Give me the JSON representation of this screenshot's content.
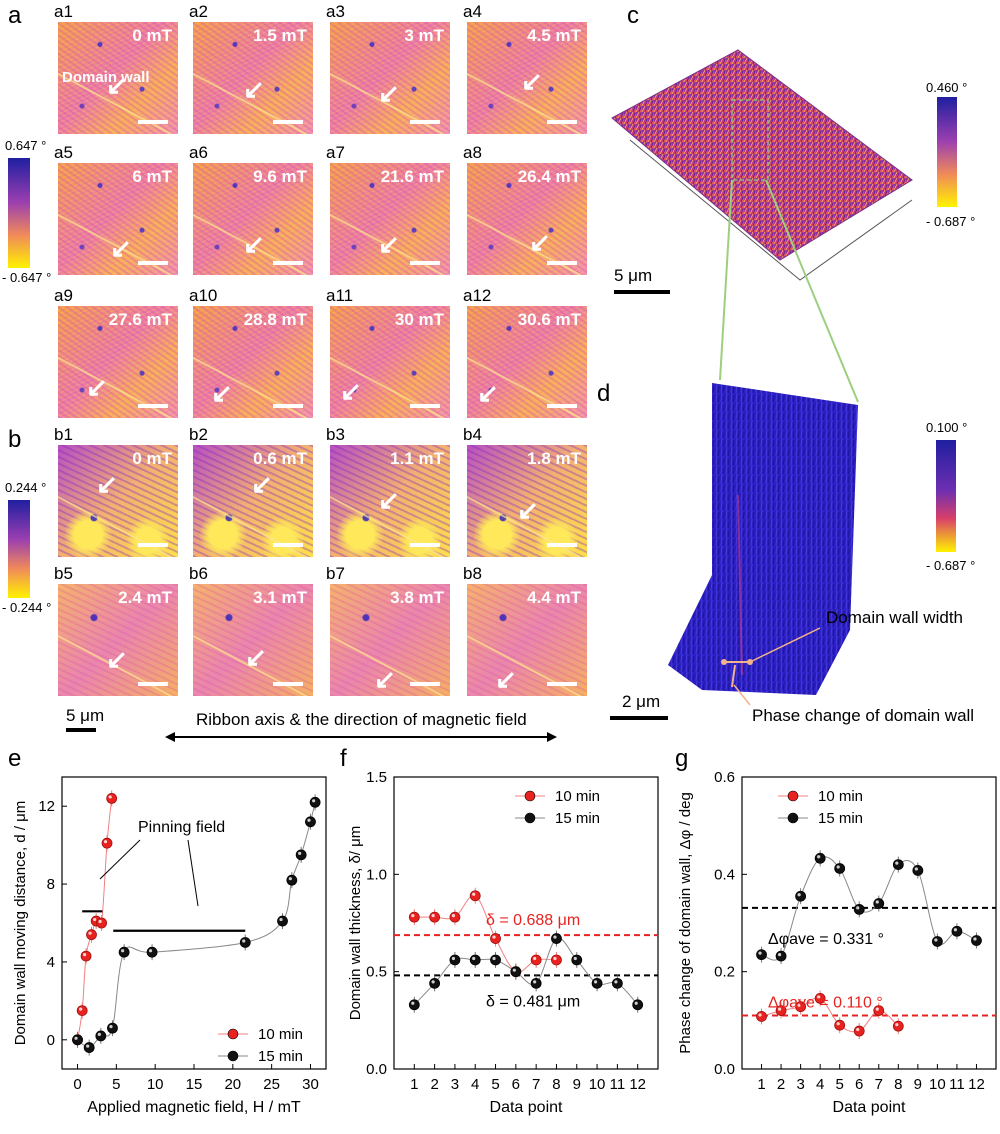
{
  "panels": {
    "a": "a",
    "b": "b",
    "c": "c",
    "d": "d",
    "e": "e",
    "f": "f",
    "g": "g"
  },
  "a_tiles": [
    {
      "label": "a1",
      "field": "0 mT"
    },
    {
      "label": "a2",
      "field": "1.5 mT"
    },
    {
      "label": "a3",
      "field": "3 mT"
    },
    {
      "label": "a4",
      "field": "4.5 mT"
    },
    {
      "label": "a5",
      "field": "6 mT"
    },
    {
      "label": "a6",
      "field": "9.6 mT"
    },
    {
      "label": "a7",
      "field": "21.6 mT"
    },
    {
      "label": "a8",
      "field": "26.4 mT"
    },
    {
      "label": "a9",
      "field": "27.6 mT"
    },
    {
      "label": "a10",
      "field": "28.8 mT"
    },
    {
      "label": "a11",
      "field": "30 mT"
    },
    {
      "label": "a12",
      "field": "30.6 mT"
    }
  ],
  "b_tiles": [
    {
      "label": "b1",
      "field": "0 mT"
    },
    {
      "label": "b2",
      "field": "0.6 mT"
    },
    {
      "label": "b3",
      "field": "1.1 mT"
    },
    {
      "label": "b4",
      "field": "1.8 mT"
    },
    {
      "label": "b5",
      "field": "2.4 mT"
    },
    {
      "label": "b6",
      "field": "3.1 mT"
    },
    {
      "label": "b7",
      "field": "3.8 mT"
    },
    {
      "label": "b8",
      "field": "4.4 mT"
    }
  ],
  "domain_wall_label": "Domain wall",
  "a_colorbar": {
    "top": "0.647 °",
    "bottom": "- 0.647 °"
  },
  "b_colorbar": {
    "top": "0.244 °",
    "bottom": "- 0.244 °"
  },
  "c_colorbar": {
    "top": "0.460 °",
    "bottom": "- 0.687 °"
  },
  "d_colorbar": {
    "top": "0.100 °",
    "bottom": "- 0.687 °"
  },
  "scale_ab": "5 μm",
  "scale_c": "5 μm",
  "scale_d": "2 μm",
  "ribbon_axis": "Ribbon axis & the direction of magnetic field",
  "d_annotations": {
    "width": "Domain wall width",
    "phase": "Phase change of domain wall"
  },
  "colors": {
    "series_10": "#e8231f",
    "series_15": "#111111",
    "avg_10": "#e8231f",
    "avg_15": "#000000",
    "surface_c": "#b0307a",
    "surface_d": "#2a1fc0"
  },
  "chart_data": [
    {
      "type": "scatter",
      "panel": "e",
      "xlabel": "Applied magnetic field, H / mT",
      "ylabel": "Domain wall moving distance, d / μm",
      "xlim": [
        -2,
        32
      ],
      "ylim": [
        -1.5,
        13.5
      ],
      "xticks": [
        0,
        5,
        10,
        15,
        20,
        25,
        30
      ],
      "yticks": [
        0,
        4,
        8,
        12
      ],
      "legend": "bottom-right",
      "annotation": "Pinning field",
      "pinning_lines": [
        [
          0.6,
          3.2,
          6.6
        ],
        [
          4.6,
          21.6,
          5.6
        ]
      ],
      "series": [
        {
          "name": "10 min",
          "x": [
            0,
            0.6,
            1.1,
            1.8,
            2.4,
            3.1,
            3.8,
            4.4
          ],
          "y": [
            0,
            1.5,
            4.3,
            5.4,
            6.1,
            6.0,
            10.1,
            12.4
          ]
        },
        {
          "name": "15 min",
          "x": [
            0,
            1.5,
            3,
            4.5,
            6,
            9.6,
            21.6,
            26.4,
            27.6,
            28.8,
            30,
            30.6
          ],
          "y": [
            0,
            -0.4,
            0.2,
            0.6,
            4.5,
            4.5,
            5.0,
            6.1,
            8.2,
            9.5,
            11.2,
            12.2
          ]
        }
      ]
    },
    {
      "type": "line",
      "panel": "f",
      "xlabel": "Data point",
      "ylabel": "Domain wall thickness, δ/ μm",
      "xlim": [
        0,
        13
      ],
      "ylim": [
        0,
        1.5
      ],
      "xticks": [
        1,
        2,
        3,
        4,
        5,
        6,
        7,
        8,
        9,
        10,
        11,
        12
      ],
      "yticks": [
        0.0,
        0.5,
        1.0,
        1.5
      ],
      "legend": "top-right",
      "series": [
        {
          "name": "10 min",
          "x": [
            1,
            2,
            3,
            4,
            5,
            6,
            7,
            8
          ],
          "y": [
            0.78,
            0.78,
            0.78,
            0.89,
            0.67,
            0.5,
            0.56,
            0.56
          ]
        },
        {
          "name": "15 min",
          "x": [
            1,
            2,
            3,
            4,
            5,
            6,
            7,
            8,
            9,
            10,
            11,
            12
          ],
          "y": [
            0.33,
            0.44,
            0.56,
            0.56,
            0.56,
            0.5,
            0.44,
            0.67,
            0.56,
            0.44,
            0.44,
            0.33
          ]
        }
      ],
      "averages": [
        {
          "series": "10 min",
          "value": 0.688,
          "label": "δ = 0.688 μm"
        },
        {
          "series": "15 min",
          "value": 0.481,
          "label": "δ = 0.481 μm"
        }
      ]
    },
    {
      "type": "line",
      "panel": "g",
      "xlabel": "Data point",
      "ylabel": "Phase change of domain wall, Δφ / deg",
      "xlim": [
        0,
        13
      ],
      "ylim": [
        0,
        0.6
      ],
      "xticks": [
        1,
        2,
        3,
        4,
        5,
        6,
        7,
        8,
        9,
        10,
        11,
        12
      ],
      "yticks": [
        0.0,
        0.2,
        0.4,
        0.6
      ],
      "legend": "top-center",
      "series": [
        {
          "name": "10 min",
          "x": [
            1,
            2,
            3,
            4,
            5,
            6,
            7,
            8
          ],
          "y": [
            0.108,
            0.12,
            0.128,
            0.145,
            0.09,
            0.078,
            0.12,
            0.088
          ]
        },
        {
          "name": "15 min",
          "x": [
            1,
            2,
            3,
            4,
            5,
            6,
            7,
            8,
            9,
            10,
            11,
            12
          ],
          "y": [
            0.235,
            0.232,
            0.355,
            0.433,
            0.412,
            0.328,
            0.34,
            0.42,
            0.408,
            0.262,
            0.283,
            0.264
          ]
        }
      ],
      "averages": [
        {
          "series": "10 min",
          "value": 0.11,
          "label": "Δφave = 0.110 °"
        },
        {
          "series": "15 min",
          "value": 0.331,
          "label": "Δφave = 0.331 °"
        }
      ]
    }
  ]
}
